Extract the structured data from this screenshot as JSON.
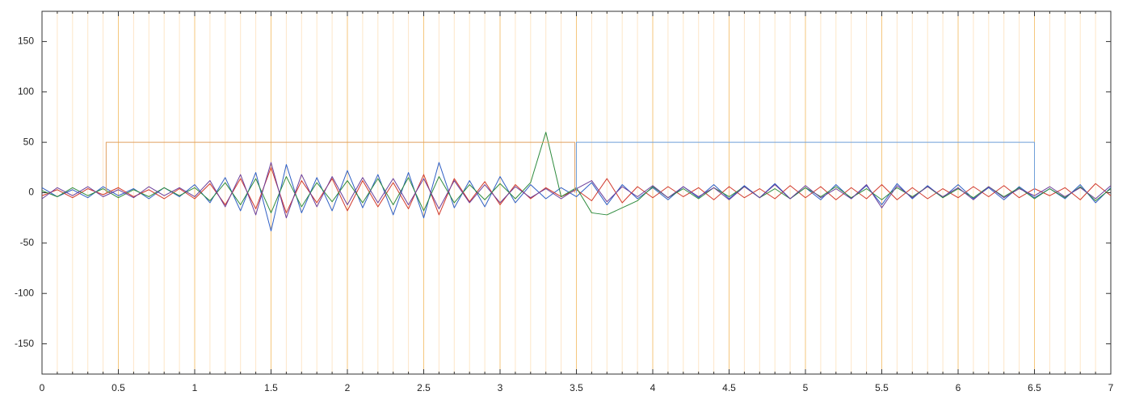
{
  "chart_data": {
    "type": "line",
    "xlim": [
      0,
      7
    ],
    "ylim": [
      -180,
      180
    ],
    "xticks": [
      0,
      0.5,
      1,
      1.5,
      2,
      2.5,
      3,
      3.5,
      4,
      4.5,
      5,
      5.5,
      6,
      6.5,
      7
    ],
    "yticks": [
      -150,
      -100,
      -50,
      0,
      50,
      100,
      150
    ],
    "x_minor_ticks": [
      0.1,
      0.2,
      0.3,
      0.4,
      0.6,
      0.7,
      0.8,
      0.9,
      1.1,
      1.2,
      1.3,
      1.4,
      1.6,
      1.7,
      1.8,
      1.9,
      2.1,
      2.2,
      2.3,
      2.4,
      2.6,
      2.7,
      2.8,
      2.9,
      3.1,
      3.2,
      3.3,
      3.4,
      3.6,
      3.7,
      3.8,
      3.9,
      4.1,
      4.2,
      4.3,
      4.4,
      4.6,
      4.7,
      4.8,
      4.9,
      5.1,
      5.2,
      5.3,
      5.4,
      5.6,
      5.7,
      5.8,
      5.9,
      6.1,
      6.2,
      6.3,
      6.4,
      6.6,
      6.7,
      6.8,
      6.9
    ],
    "grid": true,
    "grid_color": "#f5c77e",
    "minor_grid_color": "#fde6c8",
    "x": [
      0,
      0.1,
      0.2,
      0.3,
      0.4,
      0.5,
      0.6,
      0.7,
      0.8,
      0.9,
      1,
      1.1,
      1.2,
      1.3,
      1.4,
      1.5,
      1.6,
      1.7,
      1.8,
      1.9,
      2,
      2.1,
      2.2,
      2.3,
      2.4,
      2.5,
      2.6,
      2.7,
      2.8,
      2.9,
      3,
      3.1,
      3.2,
      3.3,
      3.4,
      3.5,
      3.6,
      3.7,
      3.8,
      3.9,
      4,
      4.1,
      4.2,
      4.3,
      4.4,
      4.5,
      4.6,
      4.7,
      4.8,
      4.9,
      5,
      5.1,
      5.2,
      5.3,
      5.4,
      5.5,
      5.6,
      5.7,
      5.8,
      5.9,
      6,
      6.1,
      6.2,
      6.3,
      6.4,
      6.5,
      6.6,
      6.7,
      6.8,
      6.9,
      7
    ],
    "series": [
      {
        "color": "#2f5fc4",
        "values": [
          5,
          -4,
          3,
          -5,
          6,
          -3,
          4,
          -6,
          5,
          -4,
          8,
          -10,
          15,
          -18,
          20,
          -38,
          28,
          -20,
          15,
          -18,
          22,
          -15,
          18,
          -22,
          20,
          -25,
          30,
          -15,
          12,
          -14,
          16,
          -10,
          8,
          -6,
          5,
          -4,
          10,
          -12,
          8,
          -6,
          5,
          -7,
          6,
          -5,
          8,
          -6,
          7,
          -5,
          9,
          -6,
          5,
          -7,
          8,
          -6,
          7,
          -12,
          9,
          -6,
          7,
          -5,
          8,
          -6,
          5,
          -7,
          6,
          -5,
          4,
          -6,
          8,
          -10,
          5
        ]
      },
      {
        "color": "#d0382c",
        "values": [
          -3,
          3,
          -5,
          4,
          -2,
          5,
          -4,
          3,
          -6,
          4,
          -6,
          9,
          -12,
          14,
          -16,
          25,
          -20,
          12,
          -10,
          14,
          -18,
          12,
          -14,
          10,
          -16,
          18,
          -22,
          14,
          -9,
          11,
          -12,
          8,
          -6,
          5,
          -4,
          3,
          -8,
          14,
          -10,
          6,
          -5,
          6,
          -4,
          5,
          -7,
          6,
          -5,
          4,
          -6,
          7,
          -5,
          6,
          -7,
          5,
          -6,
          8,
          -7,
          5,
          -6,
          4,
          -5,
          6,
          -4,
          7,
          -5,
          4,
          -3,
          5,
          -7,
          9,
          -3
        ]
      },
      {
        "color": "#2e8b3e",
        "values": [
          2,
          -4,
          5,
          -3,
          4,
          -5,
          3,
          -4,
          5,
          -3,
          5,
          -8,
          10,
          -12,
          14,
          -20,
          16,
          -14,
          10,
          -9,
          12,
          -10,
          14,
          -12,
          15,
          -18,
          16,
          -10,
          8,
          -7,
          9,
          -6,
          10,
          60,
          -4,
          5,
          -20,
          -22,
          -15,
          -8,
          6,
          -5,
          4,
          -6,
          5,
          -4,
          6,
          -5,
          4,
          -6,
          5,
          -4,
          6,
          -5,
          4,
          -7,
          5,
          -4,
          6,
          -5,
          4,
          -5,
          6,
          -4,
          5,
          -6,
          4,
          -5,
          6,
          -8,
          4
        ]
      },
      {
        "color": "#6a3d9a",
        "values": [
          -6,
          5,
          -3,
          6,
          -4,
          3,
          -5,
          6,
          -3,
          5,
          -4,
          12,
          -14,
          18,
          -22,
          30,
          -25,
          18,
          -14,
          16,
          -12,
          15,
          -10,
          14,
          -12,
          14,
          -16,
          12,
          -10,
          8,
          -10,
          6,
          -5,
          4,
          -6,
          4,
          12,
          -9,
          6,
          -4,
          7,
          -5,
          6,
          -4,
          5,
          -7,
          6,
          -5,
          8,
          -6,
          7,
          -5,
          4,
          -6,
          8,
          -15,
          7,
          -5,
          6,
          -4,
          5,
          -7,
          6,
          -5,
          4,
          -3,
          6,
          -4,
          5,
          -6,
          7
        ]
      },
      {
        "color": "#e0a060",
        "x": [
          0.42,
          0.42,
          3.49,
          3.49
        ],
        "values": [
          0,
          50,
          50,
          0
        ]
      },
      {
        "color": "#6f9fd8",
        "x": [
          3.5,
          3.5,
          6.5,
          6.5
        ],
        "values": [
          0,
          50,
          50,
          0
        ]
      }
    ]
  }
}
